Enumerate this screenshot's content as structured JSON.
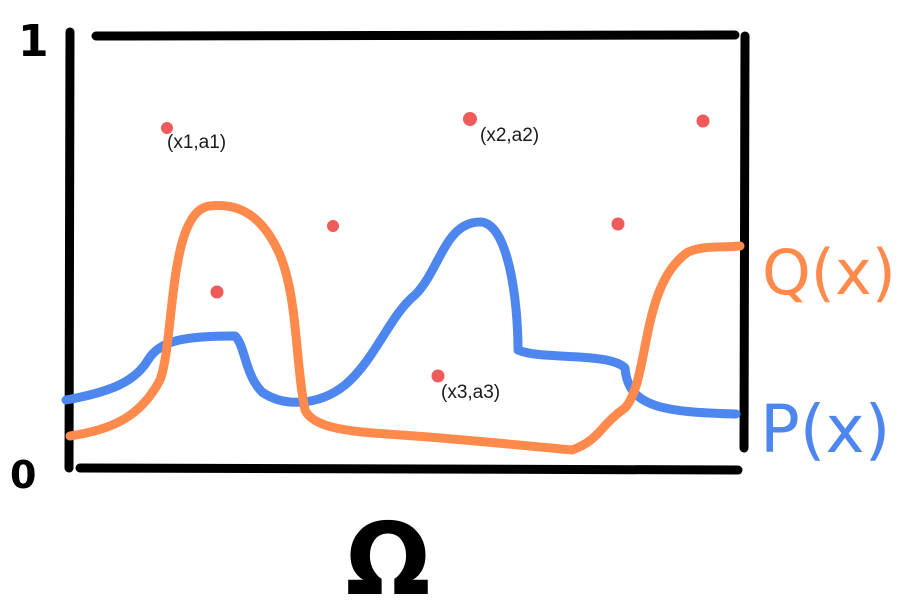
{
  "y_axis": {
    "top_label": "1",
    "bottom_label": "0"
  },
  "x_axis": {
    "label": "Ω"
  },
  "curves": [
    {
      "name": "Q(x)",
      "color": "#ff8a4c"
    },
    {
      "name": "P(x)",
      "color": "#4d86ef"
    }
  ],
  "points": {
    "color": "#ef5b5b",
    "items": [
      {
        "label": "(x1,a1)"
      },
      {
        "label": "(x2,a2)"
      },
      {
        "label": ""
      },
      {
        "label": ""
      },
      {
        "label": ""
      },
      {
        "label": ""
      },
      {
        "label": "(x3,a3)"
      }
    ]
  }
}
